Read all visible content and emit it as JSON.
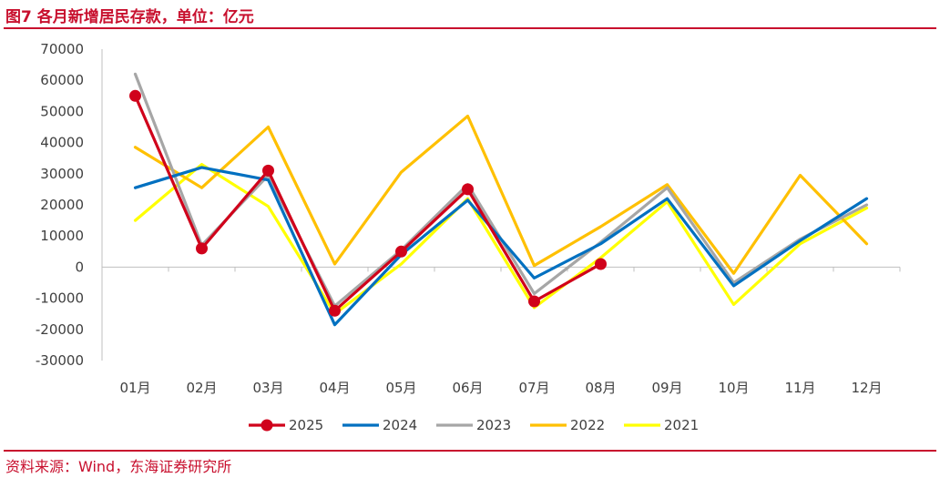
{
  "title": "图7  各月新增居民存款，单位：亿元",
  "source": "资料来源：Wind，东海证券研究所",
  "chart_data": {
    "type": "line",
    "title": "图7  各月新增居民存款，单位：亿元",
    "xlabel": "",
    "ylabel": "",
    "categories": [
      "01月",
      "02月",
      "03月",
      "04月",
      "05月",
      "06月",
      "07月",
      "08月",
      "09月",
      "10月",
      "11月",
      "12月"
    ],
    "ylim": [
      -30000,
      70000
    ],
    "yticks": [
      -30000,
      -20000,
      -10000,
      0,
      10000,
      20000,
      30000,
      40000,
      50000,
      60000,
      70000
    ],
    "grid": false,
    "legend_position": "bottom",
    "series": [
      {
        "name": "2025",
        "color": "#d0021b",
        "marker": "circle",
        "values": [
          55000,
          6000,
          31000,
          -14000,
          5000,
          25000,
          -11000,
          1000,
          null,
          null,
          null,
          null
        ]
      },
      {
        "name": "2024",
        "color": "#0070c0",
        "marker": "none",
        "values": [
          25500,
          32000,
          28000,
          -18500,
          4000,
          21500,
          -3500,
          7500,
          22000,
          -6000,
          8500,
          22000
        ]
      },
      {
        "name": "2023",
        "color": "#a6a6a6",
        "marker": "none",
        "values": [
          62000,
          7000,
          29500,
          -12500,
          5500,
          26500,
          -8500,
          8000,
          25500,
          -5000,
          9000,
          20000
        ]
      },
      {
        "name": "2022",
        "color": "#ffc000",
        "marker": "none",
        "values": [
          38500,
          25500,
          45000,
          1000,
          30500,
          48500,
          500,
          13000,
          26500,
          -2000,
          29500,
          7500
        ]
      },
      {
        "name": "2021",
        "color": "#ffff00",
        "marker": "none",
        "values": [
          15000,
          33000,
          19500,
          -15000,
          1000,
          22000,
          -13000,
          3000,
          21000,
          -12000,
          7500,
          19000
        ]
      }
    ]
  }
}
